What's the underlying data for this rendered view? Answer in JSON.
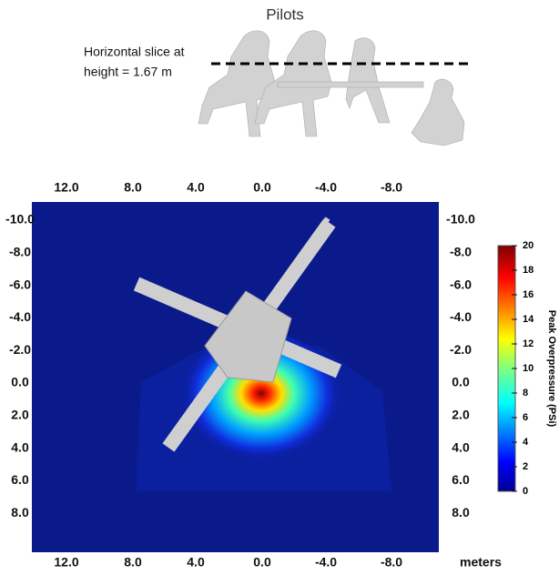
{
  "header": {
    "title": "Pilots",
    "annotation": [
      "Horizontal slice at",
      "height = 1.67 m"
    ]
  },
  "plot": {
    "top_axis": [
      "12.0",
      "8.0",
      "4.0",
      "0.0",
      "-4.0",
      "-8.0"
    ],
    "bottom_axis": [
      "12.0",
      "8.0",
      "4.0",
      "0.0",
      "-4.0",
      "-8.0"
    ],
    "left_axis": [
      "-10.0",
      "-8.0",
      "-6.0",
      "-4.0",
      "-2.0",
      "0.0",
      "2.0",
      "4.0",
      "6.0",
      "8.0"
    ],
    "right_axis": [
      "-10.0",
      "-8.0",
      "-6.0",
      "-4.0",
      "-2.0",
      "0.0",
      "2.0",
      "4.0",
      "6.0",
      "8.0"
    ],
    "unit": "meters"
  },
  "colorbar": {
    "label": "Peak Overpressure (PSi)",
    "ticks": [
      0,
      2,
      4,
      6,
      8,
      10,
      12,
      14,
      16,
      18,
      20
    ]
  }
}
